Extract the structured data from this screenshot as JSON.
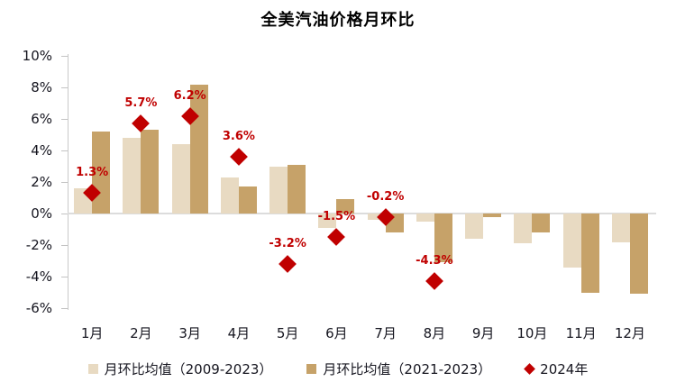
{
  "title": "全美汽油价格月环比",
  "colors": {
    "series_light": "#e8dac2",
    "series_dark": "#c6a269",
    "accent_red": "#c00000",
    "axis_text": "#15151f",
    "axis_line": "#c9c9c9",
    "zero_line": "#dcdcdc"
  },
  "chart_data": {
    "type": "bar",
    "title": "全美汽油价格月环比",
    "categories": [
      "1月",
      "2月",
      "3月",
      "4月",
      "5月",
      "6月",
      "7月",
      "8月",
      "9月",
      "10月",
      "11月",
      "12月"
    ],
    "series": [
      {
        "name": "月环比均值（2009-2023）",
        "type": "bar",
        "color_key": "series_light",
        "values": [
          1.6,
          4.8,
          4.4,
          2.3,
          3.0,
          -0.9,
          -0.4,
          -0.5,
          -1.6,
          -1.9,
          -3.4,
          -1.8
        ]
      },
      {
        "name": "月环比均值（2021-2023）",
        "type": "bar",
        "color_key": "series_dark",
        "values": [
          5.2,
          5.3,
          8.2,
          1.7,
          3.1,
          0.9,
          -1.2,
          -3.1,
          -0.2,
          -1.2,
          -5.0,
          -5.1
        ]
      },
      {
        "name": "2024年",
        "type": "scatter-diamond",
        "color_key": "accent_red",
        "values": [
          1.3,
          5.7,
          6.2,
          3.6,
          -3.2,
          -1.5,
          -0.2,
          -4.3,
          null,
          null,
          null,
          null
        ],
        "labels": [
          "1.3%",
          "5.7%",
          "6.2%",
          "3.6%",
          "-3.2%",
          "-1.5%",
          "-0.2%",
          "-4.3%",
          null,
          null,
          null,
          null
        ]
      }
    ],
    "ylim": [
      -6,
      10
    ],
    "ytick_step": 2,
    "ytick_labels": [
      "10%",
      "8%",
      "6%",
      "4%",
      "2%",
      "0%",
      "-2%",
      "-4%",
      "-6%"
    ],
    "grid": "zero-line-only",
    "legend_position": "bottom"
  }
}
